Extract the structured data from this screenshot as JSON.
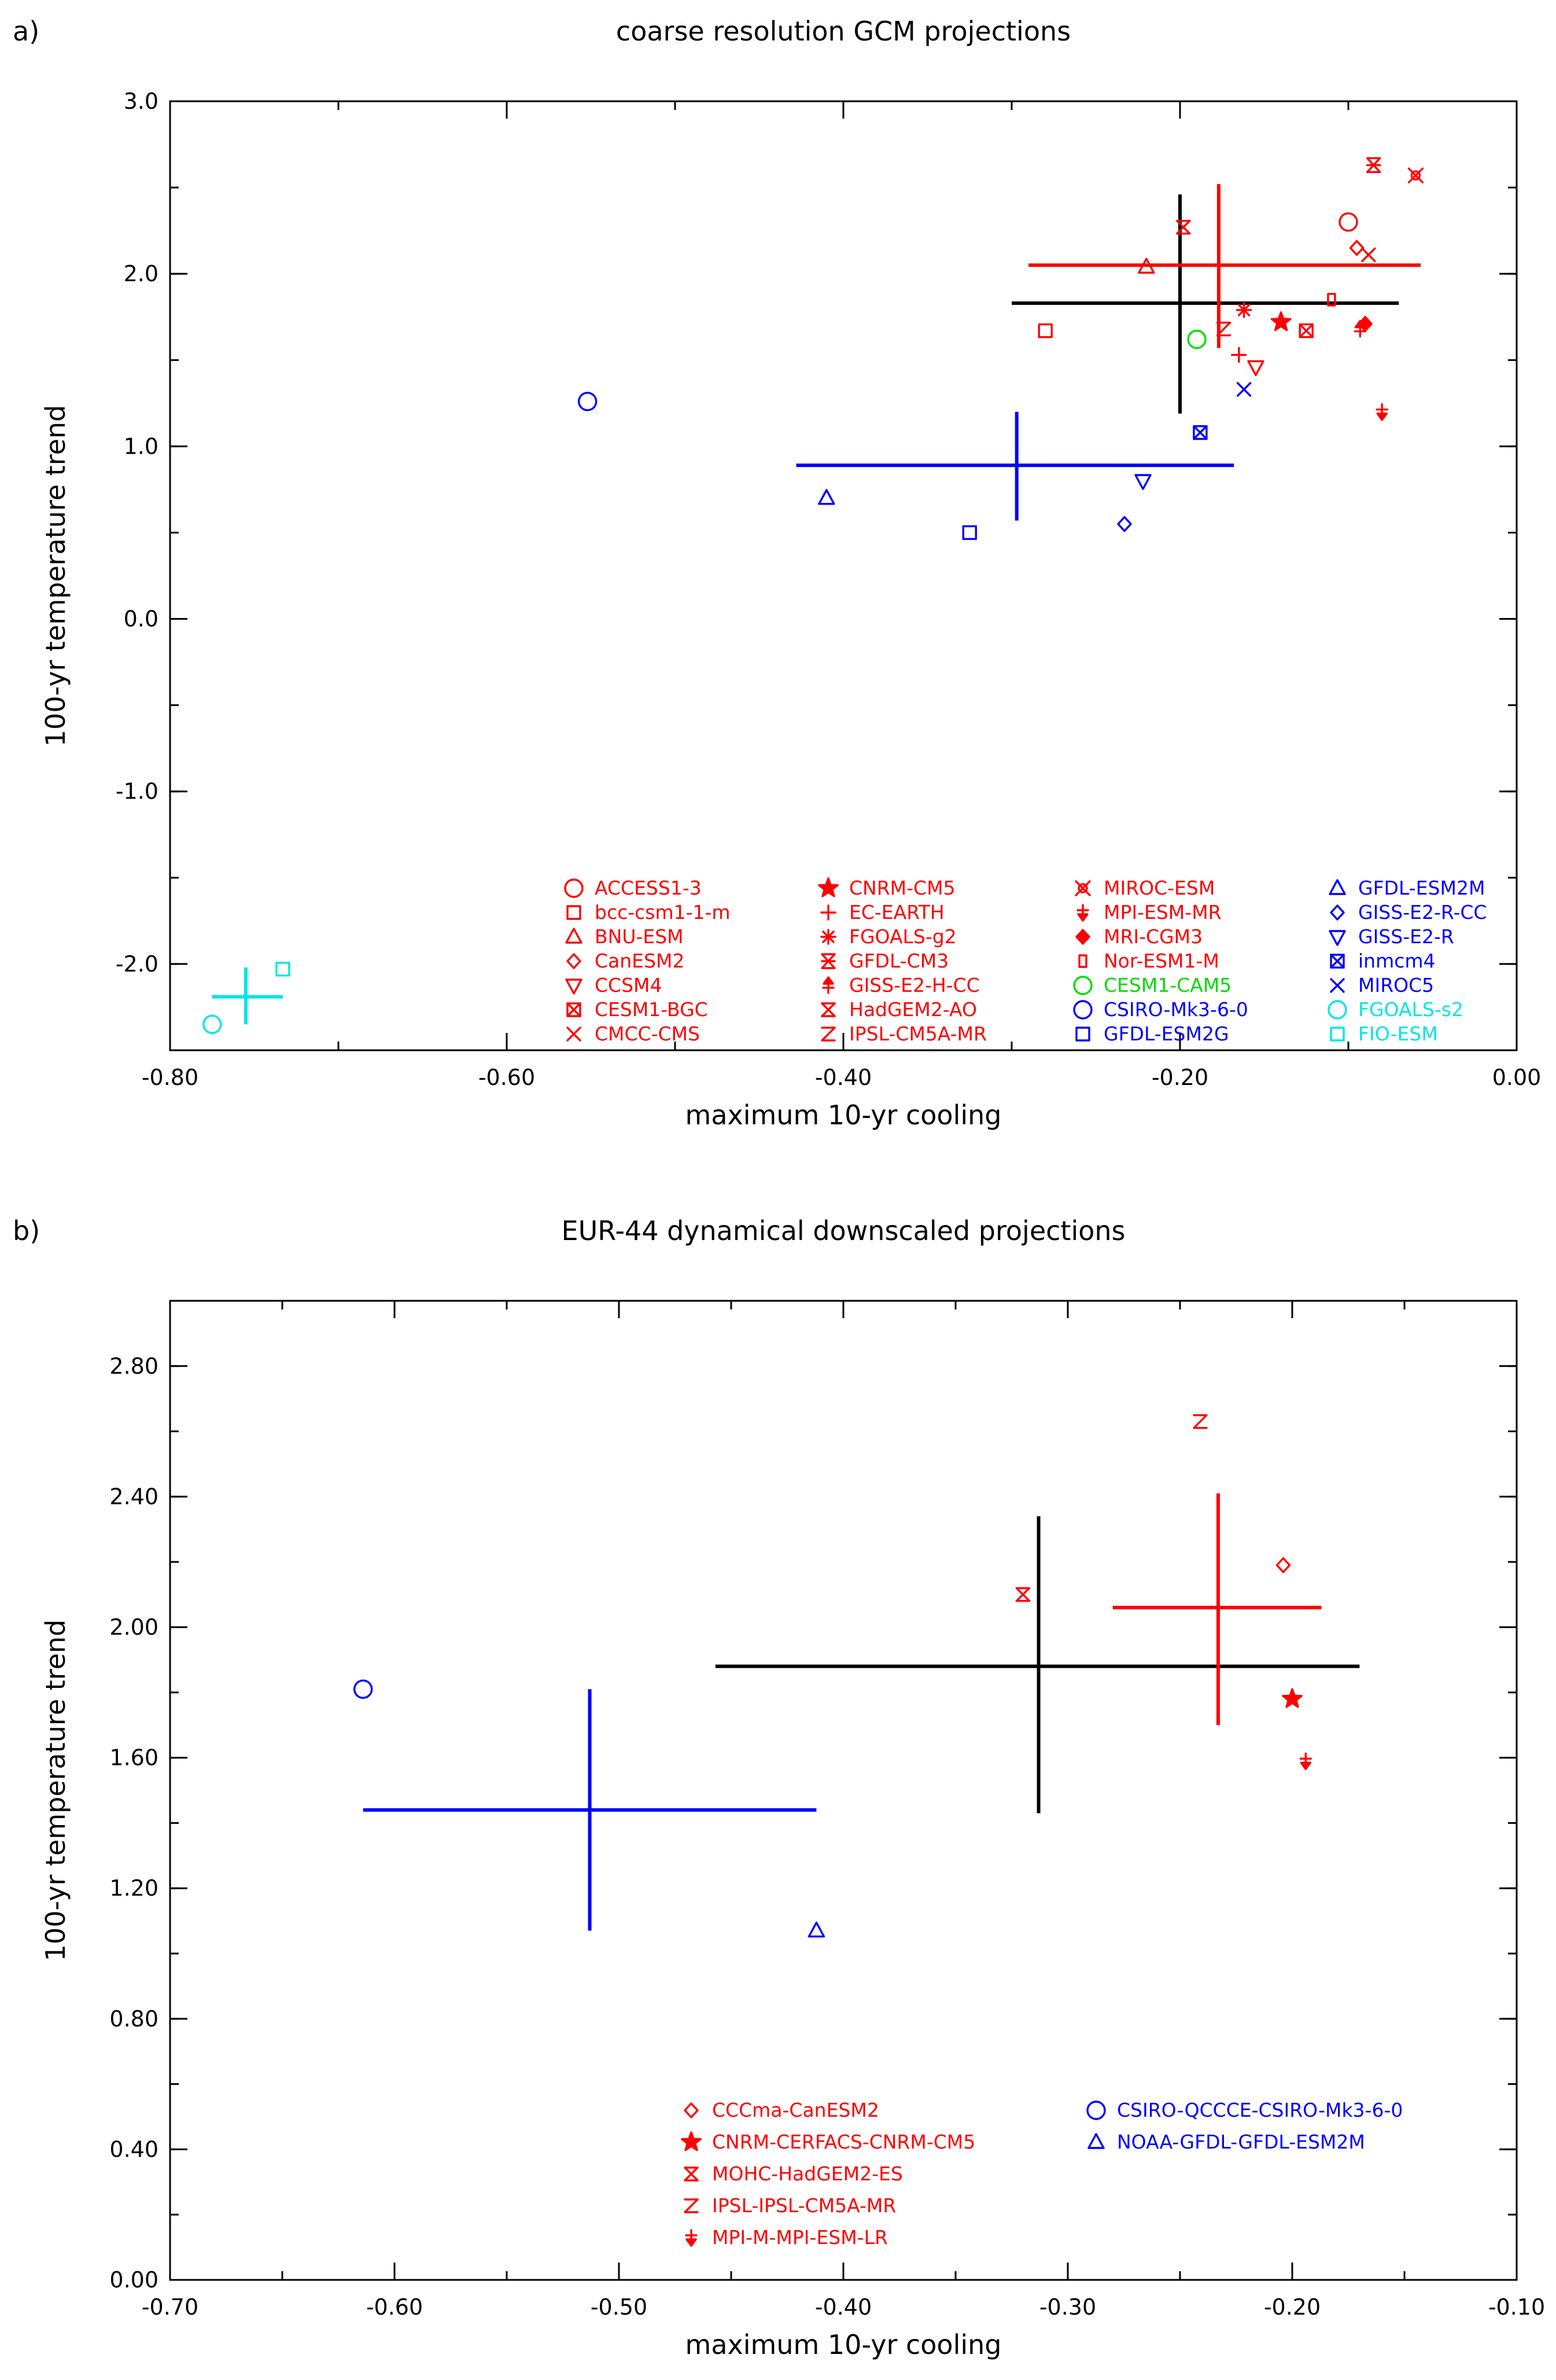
{
  "colors": {
    "red": "#ff0000",
    "blue": "#0000ff",
    "green": "#00dd00",
    "cyan": "#00e5e5",
    "black": "#000000"
  },
  "chart_data": [
    {
      "panel_label": "a)",
      "type": "scatter",
      "title": "coarse resolution GCM projections",
      "xlabel": "maximum 10-yr cooling",
      "ylabel": "100-yr temperature trend",
      "xlim": [
        -0.8,
        0.0
      ],
      "ylim": [
        -2.5,
        3.0
      ],
      "xticks": [
        -0.8,
        -0.6,
        -0.4,
        -0.2,
        0.0
      ],
      "xtick_labels": [
        "-0.80",
        "-0.60",
        "-0.40",
        "-0.20",
        "0.00"
      ],
      "yticks": [
        -2.0,
        -1.0,
        0.0,
        1.0,
        2.0,
        3.0
      ],
      "ytick_labels": [
        "-2.0",
        "-1.0",
        "0.0",
        "1.0",
        "2.0",
        "3.0"
      ],
      "minor_x_step": 0.1,
      "minor_y_step": 0.5,
      "points": [
        {
          "model": "ACCESS1-3",
          "marker": "circle",
          "color": "red",
          "x": -0.1,
          "y": 2.3
        },
        {
          "model": "bcc-csm1-1-m",
          "marker": "square",
          "color": "red",
          "x": -0.28,
          "y": 1.67
        },
        {
          "model": "BNU-ESM",
          "marker": "triangle",
          "color": "red",
          "x": -0.22,
          "y": 2.04
        },
        {
          "model": "CanESM2",
          "marker": "diamond",
          "color": "red",
          "x": -0.095,
          "y": 2.15
        },
        {
          "model": "CCSM4",
          "marker": "triangle-down",
          "color": "red",
          "x": -0.155,
          "y": 1.46
        },
        {
          "model": "CESM1-BGC",
          "marker": "square-x",
          "color": "red",
          "x": -0.125,
          "y": 1.67
        },
        {
          "model": "CMCC-CMS",
          "marker": "x",
          "color": "red",
          "x": -0.088,
          "y": 2.11
        },
        {
          "model": "CNRM-CM5",
          "marker": "star",
          "color": "red",
          "x": -0.14,
          "y": 1.72
        },
        {
          "model": "EC-EARTH",
          "marker": "plus",
          "color": "red",
          "x": -0.165,
          "y": 1.53
        },
        {
          "model": "FGOALS-g2",
          "marker": "asterisk",
          "color": "red",
          "x": -0.162,
          "y": 1.79
        },
        {
          "model": "GFDL-CM3",
          "marker": "hourglass",
          "color": "red",
          "x": -0.085,
          "y": 2.63
        },
        {
          "model": "GISS-E2-H-CC",
          "marker": "arrow-up",
          "color": "red",
          "x": -0.093,
          "y": 1.68
        },
        {
          "model": "HadGEM2-AO",
          "marker": "bowtie-x",
          "color": "red",
          "x": -0.198,
          "y": 2.27
        },
        {
          "model": "IPSL-CM5A-MR",
          "marker": "z",
          "color": "red",
          "x": -0.174,
          "y": 1.68
        },
        {
          "model": "MIROC-ESM",
          "marker": "ring-x",
          "color": "red",
          "x": -0.06,
          "y": 2.57
        },
        {
          "model": "MPI-ESM-MR",
          "marker": "arrow-down",
          "color": "red",
          "x": -0.08,
          "y": 1.2
        },
        {
          "model": "MRI-CGM3",
          "marker": "diamond-filled",
          "color": "red",
          "x": -0.09,
          "y": 1.71
        },
        {
          "model": "Nor-ESM1-M",
          "marker": "small-rect",
          "color": "red",
          "x": -0.11,
          "y": 1.85
        },
        {
          "model": "CESM1-CAM5",
          "marker": "circle",
          "color": "green",
          "x": -0.19,
          "y": 1.62
        },
        {
          "model": "CSIRO-Mk3-6-0",
          "marker": "circle",
          "color": "blue",
          "x": -0.552,
          "y": 1.26
        },
        {
          "model": "GFDL-ESM2G",
          "marker": "square",
          "color": "blue",
          "x": -0.325,
          "y": 0.5
        },
        {
          "model": "GFDL-ESM2M",
          "marker": "triangle",
          "color": "blue",
          "x": -0.41,
          "y": 0.7
        },
        {
          "model": "GISS-E2-R-CC",
          "marker": "diamond",
          "color": "blue",
          "x": -0.233,
          "y": 0.55
        },
        {
          "model": "GISS-E2-R",
          "marker": "triangle-down",
          "color": "blue",
          "x": -0.222,
          "y": 0.8
        },
        {
          "model": "inmcm4",
          "marker": "square-x",
          "color": "blue",
          "x": -0.188,
          "y": 1.08
        },
        {
          "model": "MIROC5",
          "marker": "x",
          "color": "blue",
          "x": -0.162,
          "y": 1.33
        },
        {
          "model": "FGOALS-s2",
          "marker": "circle",
          "color": "cyan",
          "x": -0.775,
          "y": -2.35
        },
        {
          "model": "FIO-ESM",
          "marker": "square",
          "color": "cyan",
          "x": -0.733,
          "y": -2.03
        }
      ],
      "crosses": [
        {
          "group": "black",
          "color": "black",
          "cx": -0.2,
          "cy": 1.83,
          "xmin": -0.3,
          "xmax": -0.07,
          "ymin": 1.19,
          "ymax": 2.46
        },
        {
          "group": "red",
          "color": "red",
          "cx": -0.177,
          "cy": 2.05,
          "xmin": -0.29,
          "xmax": -0.057,
          "ymin": 1.57,
          "ymax": 2.52
        },
        {
          "group": "blue",
          "color": "blue",
          "cx": -0.297,
          "cy": 0.89,
          "xmin": -0.428,
          "xmax": -0.168,
          "ymin": 0.57,
          "ymax": 1.2
        },
        {
          "group": "cyan",
          "color": "cyan",
          "cx": -0.755,
          "cy": -2.19,
          "xmin": -0.775,
          "xmax": -0.733,
          "ymin": -2.35,
          "ymax": -2.02
        }
      ],
      "legend_columns": [
        [
          {
            "model": "ACCESS1-3",
            "marker": "circle",
            "color": "red"
          },
          {
            "model": "bcc-csm1-1-m",
            "marker": "square",
            "color": "red"
          },
          {
            "model": "BNU-ESM",
            "marker": "triangle",
            "color": "red"
          },
          {
            "model": "CanESM2",
            "marker": "diamond",
            "color": "red"
          },
          {
            "model": "CCSM4",
            "marker": "triangle-down",
            "color": "red"
          },
          {
            "model": "CESM1-BGC",
            "marker": "square-x",
            "color": "red"
          },
          {
            "model": "CMCC-CMS",
            "marker": "x",
            "color": "red"
          }
        ],
        [
          {
            "model": "CNRM-CM5",
            "marker": "star",
            "color": "red"
          },
          {
            "model": "EC-EARTH",
            "marker": "plus",
            "color": "red"
          },
          {
            "model": "FGOALS-g2",
            "marker": "asterisk",
            "color": "red"
          },
          {
            "model": "GFDL-CM3",
            "marker": "hourglass",
            "color": "red"
          },
          {
            "model": "GISS-E2-H-CC",
            "marker": "arrow-up",
            "color": "red"
          },
          {
            "model": "HadGEM2-AO",
            "marker": "bowtie-x",
            "color": "red"
          },
          {
            "model": "IPSL-CM5A-MR",
            "marker": "z",
            "color": "red"
          }
        ],
        [
          {
            "model": "MIROC-ESM",
            "marker": "ring-x",
            "color": "red"
          },
          {
            "model": "MPI-ESM-MR",
            "marker": "arrow-down",
            "color": "red"
          },
          {
            "model": "MRI-CGM3",
            "marker": "diamond-filled",
            "color": "red"
          },
          {
            "model": "Nor-ESM1-M",
            "marker": "small-rect",
            "color": "red"
          },
          {
            "model": "CESM1-CAM5",
            "marker": "circle",
            "color": "green"
          },
          {
            "model": "CSIRO-Mk3-6-0",
            "marker": "circle",
            "color": "blue"
          },
          {
            "model": "GFDL-ESM2G",
            "marker": "square",
            "color": "blue"
          }
        ],
        [
          {
            "model": "GFDL-ESM2M",
            "marker": "triangle",
            "color": "blue"
          },
          {
            "model": "GISS-E2-R-CC",
            "marker": "diamond",
            "color": "blue"
          },
          {
            "model": "GISS-E2-R",
            "marker": "triangle-down",
            "color": "blue"
          },
          {
            "model": "inmcm4",
            "marker": "square-x",
            "color": "blue"
          },
          {
            "model": "MIROC5",
            "marker": "x",
            "color": "blue"
          },
          {
            "model": "FGOALS-s2",
            "marker": "circle",
            "color": "cyan"
          },
          {
            "model": "FIO-ESM",
            "marker": "square",
            "color": "cyan"
          }
        ]
      ]
    },
    {
      "panel_label": "b)",
      "type": "scatter",
      "title": "EUR-44 dynamical downscaled projections",
      "xlabel": "maximum 10-yr cooling",
      "ylabel": "100-yr temperature trend",
      "xlim": [
        -0.7,
        -0.1
      ],
      "ylim": [
        0.0,
        3.0
      ],
      "xticks": [
        -0.7,
        -0.6,
        -0.5,
        -0.4,
        -0.3,
        -0.2,
        -0.1
      ],
      "xtick_labels": [
        "-0.70",
        "-0.60",
        "-0.50",
        "-0.40",
        "-0.30",
        "-0.20",
        "-0.10"
      ],
      "yticks": [
        0.0,
        0.4,
        0.8,
        1.2,
        1.6,
        2.0,
        2.4,
        2.8
      ],
      "ytick_labels": [
        "0.00",
        "0.40",
        "0.80",
        "1.20",
        "1.60",
        "2.00",
        "2.40",
        "2.80"
      ],
      "minor_x_step": 0.05,
      "minor_y_step": 0.2,
      "points": [
        {
          "model": "CCCma-CanESM2",
          "marker": "diamond",
          "color": "red",
          "x": -0.204,
          "y": 2.19
        },
        {
          "model": "CNRM-CERFACS-CNRM-CM5",
          "marker": "star",
          "color": "red",
          "x": -0.2,
          "y": 1.78
        },
        {
          "model": "MOHC-HadGEM2-ES",
          "marker": "bowtie-x",
          "color": "red",
          "x": -0.32,
          "y": 2.1
        },
        {
          "model": "IPSL-IPSL-CM5A-MR",
          "marker": "z",
          "color": "red",
          "x": -0.241,
          "y": 2.63
        },
        {
          "model": "MPI-M-MPI-ESM-LR",
          "marker": "arrow-down",
          "color": "red",
          "x": -0.194,
          "y": 1.59
        },
        {
          "model": "CSIRO-QCCCE-CSIRO-Mk3-6-0",
          "marker": "circle",
          "color": "blue",
          "x": -0.614,
          "y": 1.81
        },
        {
          "model": "NOAA-GFDL-GFDL-ESM2M",
          "marker": "triangle",
          "color": "blue",
          "x": -0.412,
          "y": 1.07
        }
      ],
      "crosses": [
        {
          "group": "black",
          "color": "black",
          "cx": -0.313,
          "cy": 1.88,
          "xmin": -0.457,
          "xmax": -0.17,
          "ymin": 1.43,
          "ymax": 2.34
        },
        {
          "group": "red",
          "color": "red",
          "cx": -0.233,
          "cy": 2.06,
          "xmin": -0.28,
          "xmax": -0.187,
          "ymin": 1.7,
          "ymax": 2.41
        },
        {
          "group": "blue",
          "color": "blue",
          "cx": -0.513,
          "cy": 1.44,
          "xmin": -0.614,
          "xmax": -0.412,
          "ymin": 1.07,
          "ymax": 1.81
        }
      ],
      "legend_columns": [
        [
          {
            "model": "CCCma-CanESM2",
            "marker": "diamond",
            "color": "red"
          },
          {
            "model": "CNRM-CERFACS-CNRM-CM5",
            "marker": "star",
            "color": "red"
          },
          {
            "model": "MOHC-HadGEM2-ES",
            "marker": "bowtie-x",
            "color": "red"
          },
          {
            "model": "IPSL-IPSL-CM5A-MR",
            "marker": "z",
            "color": "red"
          },
          {
            "model": "MPI-M-MPI-ESM-LR",
            "marker": "arrow-down",
            "color": "red"
          }
        ],
        [
          {
            "model": "CSIRO-QCCCE-CSIRO-Mk3-6-0",
            "marker": "circle",
            "color": "blue"
          },
          {
            "model": "NOAA-GFDL-GFDL-ESM2M",
            "marker": "triangle",
            "color": "blue"
          }
        ]
      ]
    }
  ]
}
